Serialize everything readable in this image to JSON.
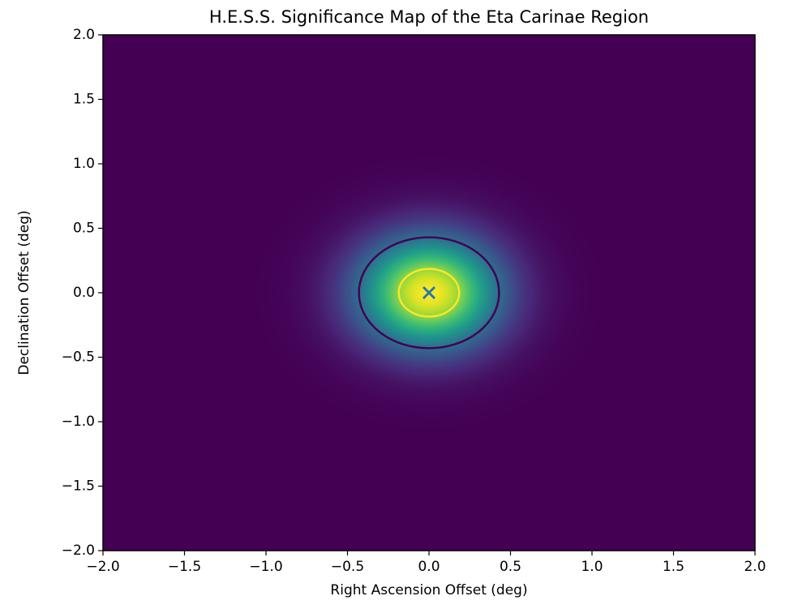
{
  "chart_data": {
    "type": "heatmap",
    "title": "H.E.S.S. Significance Map of the Eta Carinae Region",
    "x_label": "Right Ascension Offset (deg)",
    "y_label": "Declination Offset (deg)",
    "colormap": "viridis",
    "field": {
      "x": 0,
      "y": 0,
      "sigma": 0.3
    },
    "contours": [
      {
        "radius": 0.43,
        "color": "#440154"
      },
      {
        "radius": 0.185,
        "color": "#fde725"
      }
    ],
    "marker": {
      "x": 0,
      "y": 0,
      "color": "#1f77b4"
    },
    "xlim": [
      -2,
      2
    ],
    "ylim": [
      -2,
      2
    ],
    "xticks": [
      {
        "value": -2,
        "label": "−2.0"
      },
      {
        "value": -1.5,
        "label": "−1.5"
      },
      {
        "value": -1,
        "label": "−1.0"
      },
      {
        "value": -0.5,
        "label": "−0.5"
      },
      {
        "value": 0,
        "label": "0.0"
      },
      {
        "value": 0.5,
        "label": "0.5"
      },
      {
        "value": 1,
        "label": "1.0"
      },
      {
        "value": 1.5,
        "label": "1.5"
      },
      {
        "value": 2,
        "label": "2.0"
      }
    ],
    "yticks": [
      {
        "value": -2,
        "label": "−2.0"
      },
      {
        "value": -1.5,
        "label": "−1.5"
      },
      {
        "value": -1,
        "label": "−1.0"
      },
      {
        "value": -0.5,
        "label": "−0.5"
      },
      {
        "value": 0,
        "label": "0.0"
      },
      {
        "value": 0.5,
        "label": "0.5"
      },
      {
        "value": 1,
        "label": "1.0"
      },
      {
        "value": 1.5,
        "label": "1.5"
      },
      {
        "value": 2,
        "label": "2.0"
      }
    ]
  }
}
